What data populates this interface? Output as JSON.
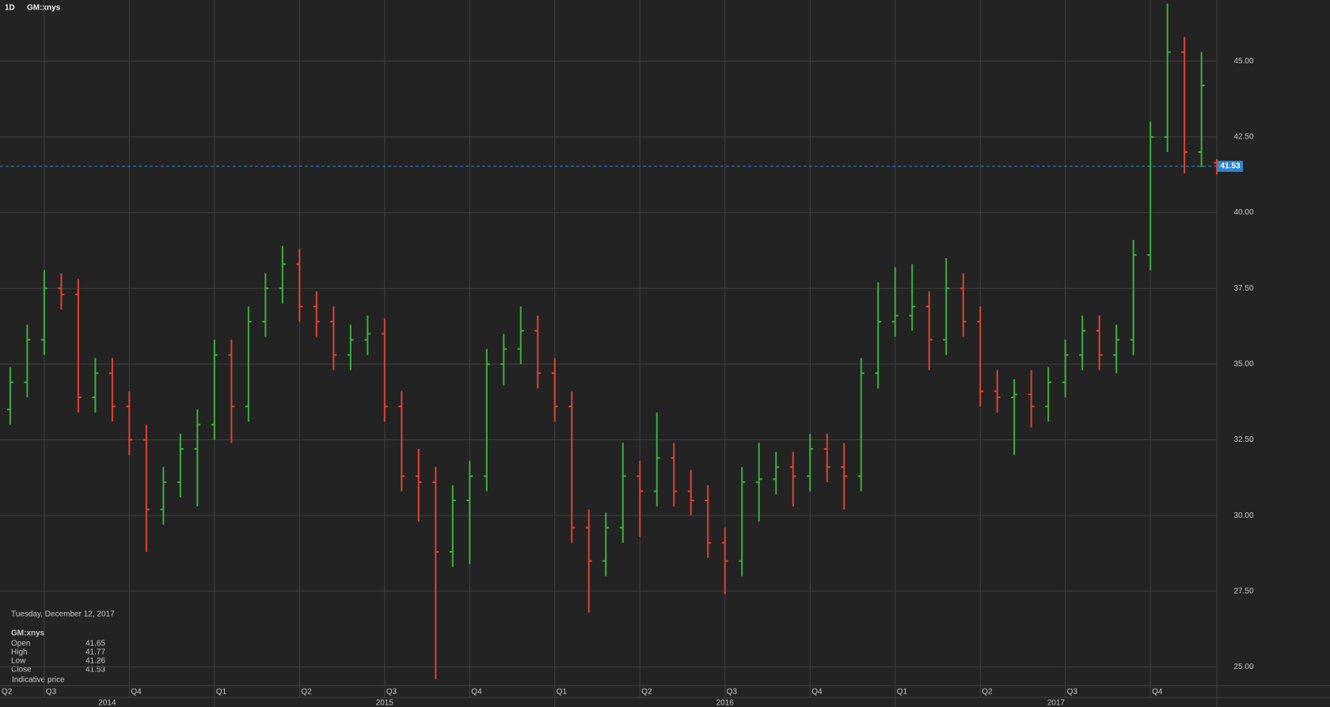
{
  "chart_data": {
    "type": "ohlc",
    "interval": "1D",
    "title": "GM:xnys",
    "x": [
      2014.4,
      2014.45,
      2014.5,
      2014.55,
      2014.6,
      2014.65,
      2014.7,
      2014.75,
      2014.8,
      2014.85,
      2014.9,
      2014.95,
      2015.0,
      2015.05,
      2015.1,
      2015.15,
      2015.2,
      2015.25,
      2015.3,
      2015.35,
      2015.4,
      2015.45,
      2015.5,
      2015.55,
      2015.6,
      2015.65,
      2015.7,
      2015.75,
      2015.8,
      2015.85,
      2015.9,
      2015.95,
      2016.0,
      2016.05,
      2016.1,
      2016.15,
      2016.2,
      2016.25,
      2016.3,
      2016.35,
      2016.4,
      2016.45,
      2016.5,
      2016.55,
      2016.6,
      2016.65,
      2016.7,
      2016.75,
      2016.8,
      2016.85,
      2016.9,
      2016.95,
      2017.0,
      2017.05,
      2017.1,
      2017.15,
      2017.2,
      2017.25,
      2017.3,
      2017.35,
      2017.4,
      2017.45,
      2017.5,
      2017.55,
      2017.6,
      2017.65,
      2017.7,
      2017.75,
      2017.8,
      2017.85,
      2017.9,
      2017.945
    ],
    "open": [
      33.5,
      34.4,
      35.8,
      37.5,
      37.3,
      33.9,
      34.7,
      33.6,
      32.5,
      30.2,
      31.1,
      32.2,
      33.0,
      35.3,
      33.6,
      36.4,
      37.5,
      38.3,
      36.9,
      36.4,
      35.3,
      35.8,
      36.0,
      33.6,
      31.3,
      31.1,
      28.8,
      30.5,
      31.3,
      35.0,
      35.5,
      36.1,
      34.7,
      33.6,
      29.6,
      28.5,
      29.6,
      31.3,
      30.8,
      31.9,
      30.8,
      30.5,
      29.1,
      28.5,
      31.1,
      31.2,
      31.6,
      31.3,
      32.2,
      31.6,
      31.3,
      34.7,
      36.4,
      36.6,
      36.9,
      35.8,
      37.5,
      36.4,
      34.1,
      33.9,
      34.0,
      33.6,
      34.4,
      35.3,
      36.1,
      35.3,
      35.8,
      38.6,
      42.5,
      45.3,
      42.0,
      41.65
    ],
    "high": [
      34.9,
      36.3,
      38.1,
      38.0,
      37.8,
      35.2,
      35.2,
      34.1,
      33.0,
      31.6,
      32.7,
      33.5,
      35.8,
      35.8,
      36.9,
      38.0,
      38.9,
      38.8,
      37.4,
      36.9,
      36.3,
      36.6,
      36.5,
      34.1,
      32.2,
      31.6,
      31.0,
      31.8,
      35.5,
      36.0,
      36.9,
      36.6,
      35.2,
      34.1,
      30.2,
      30.1,
      32.4,
      31.8,
      33.4,
      32.4,
      31.5,
      31.0,
      29.6,
      31.6,
      32.4,
      32.1,
      32.1,
      32.7,
      32.7,
      32.4,
      35.2,
      37.7,
      38.2,
      38.3,
      37.4,
      38.5,
      38.0,
      36.9,
      34.8,
      34.5,
      34.8,
      34.9,
      35.8,
      36.6,
      36.6,
      36.3,
      39.1,
      43.0,
      46.9,
      45.8,
      45.3,
      41.77
    ],
    "low": [
      33.0,
      33.9,
      35.3,
      36.8,
      33.4,
      33.4,
      33.1,
      32.0,
      28.8,
      29.7,
      30.6,
      30.3,
      32.5,
      32.4,
      33.1,
      35.9,
      37.0,
      36.4,
      35.9,
      34.8,
      34.8,
      35.3,
      33.1,
      30.8,
      29.8,
      24.6,
      28.3,
      28.4,
      30.8,
      34.3,
      35.0,
      34.2,
      33.1,
      29.1,
      26.8,
      28.0,
      29.1,
      29.3,
      30.3,
      30.3,
      30.0,
      28.6,
      27.4,
      28.0,
      29.8,
      30.7,
      30.3,
      30.8,
      31.1,
      30.2,
      30.8,
      34.2,
      35.9,
      36.1,
      34.8,
      35.3,
      35.9,
      33.6,
      33.4,
      32.0,
      32.9,
      33.1,
      33.9,
      34.8,
      34.8,
      34.7,
      35.3,
      38.1,
      42.0,
      41.3,
      41.5,
      41.26
    ],
    "close": [
      34.4,
      35.8,
      37.5,
      37.3,
      33.9,
      34.7,
      33.6,
      32.5,
      30.2,
      31.1,
      32.2,
      33.0,
      35.3,
      33.6,
      36.4,
      37.5,
      38.3,
      36.9,
      36.4,
      35.3,
      35.8,
      36.0,
      33.6,
      31.3,
      31.1,
      28.8,
      30.5,
      31.3,
      35.0,
      35.5,
      36.1,
      34.7,
      33.6,
      29.6,
      28.5,
      29.6,
      31.3,
      30.8,
      31.9,
      30.8,
      30.5,
      29.1,
      28.5,
      31.1,
      31.2,
      31.6,
      31.3,
      32.2,
      31.6,
      31.3,
      34.7,
      36.4,
      36.6,
      36.9,
      35.8,
      37.5,
      36.4,
      34.1,
      33.9,
      34.0,
      33.6,
      34.4,
      35.3,
      36.1,
      35.3,
      35.8,
      38.6,
      42.5,
      45.3,
      42.0,
      44.2,
      41.53
    ],
    "up_color": "#3bb13b",
    "down_color": "#e0432f",
    "xlim": [
      2014.37,
      2017.945
    ],
    "xticks": [
      {
        "value": 2014.25,
        "label": "Q2"
      },
      {
        "value": 2014.5,
        "label": "Q3"
      },
      {
        "value": 2014.75,
        "label": "Q4"
      },
      {
        "value": 2015.0,
        "label": "Q1"
      },
      {
        "value": 2015.25,
        "label": "Q2"
      },
      {
        "value": 2015.5,
        "label": "Q3"
      },
      {
        "value": 2015.75,
        "label": "Q4"
      },
      {
        "value": 2016.0,
        "label": "Q1"
      },
      {
        "value": 2016.25,
        "label": "Q2"
      },
      {
        "value": 2016.5,
        "label": "Q3"
      },
      {
        "value": 2016.75,
        "label": "Q4"
      },
      {
        "value": 2017.0,
        "label": "Q1"
      },
      {
        "value": 2017.25,
        "label": "Q2"
      },
      {
        "value": 2017.5,
        "label": "Q3"
      },
      {
        "value": 2017.75,
        "label": "Q4"
      }
    ],
    "year_ticks": [
      2014,
      2015,
      2016,
      2017
    ],
    "ylim": [
      24.41,
      47.02
    ],
    "yticks": [
      {
        "value": 25,
        "label": "25.00"
      },
      {
        "value": 27.5,
        "label": "27.50"
      },
      {
        "value": 30,
        "label": "30.00"
      },
      {
        "value": 32.5,
        "label": "32.50"
      },
      {
        "value": 35,
        "label": "35.00"
      },
      {
        "value": 37.5,
        "label": "37.50"
      },
      {
        "value": 40,
        "label": "40.00"
      },
      {
        "value": 42.5,
        "label": "42.50"
      },
      {
        "value": 45,
        "label": "45.00"
      }
    ],
    "grid": true,
    "last_price_color": "#2f86d1",
    "info": {
      "date": "Tuesday, December 12, 2017",
      "fields": [
        "Open",
        "High",
        "Low",
        "Close"
      ],
      "note": "Indicative price"
    }
  }
}
